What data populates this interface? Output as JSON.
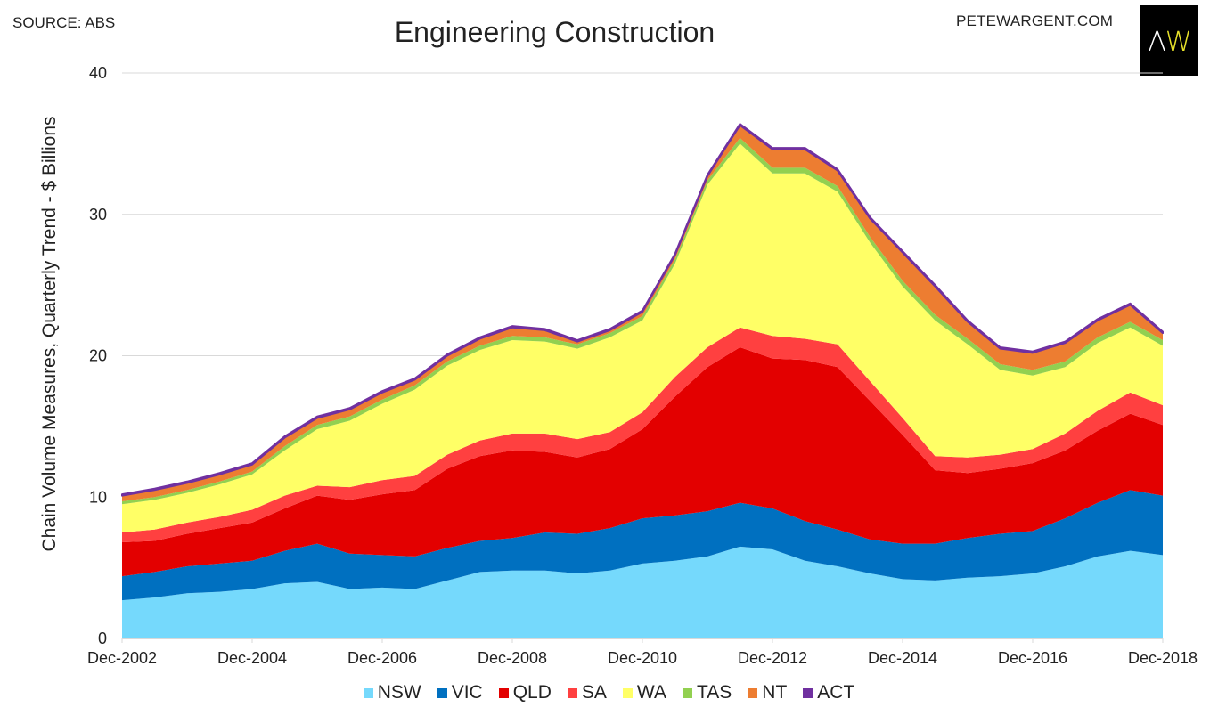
{
  "header": {
    "source": "SOURCE: ABS",
    "site": "PETEWARGENT.COM",
    "logo_left": "Λ",
    "logo_right": "W"
  },
  "chart_data": {
    "type": "area",
    "stacked": true,
    "title": "Engineering Construction",
    "xlabel": "",
    "ylabel": "Chain Volume Measures, Quarterly Trend - $ Billions",
    "ylim": [
      0,
      40
    ],
    "yticks": [
      "0",
      "10",
      "20",
      "30",
      "40"
    ],
    "xticks": [
      "Dec-2002",
      "Dec-2004",
      "Dec-2006",
      "Dec-2008",
      "Dec-2010",
      "Dec-2012",
      "Dec-2014",
      "Dec-2016",
      "Dec-2018"
    ],
    "grid": "horizontal",
    "legend": "bottom",
    "x": [
      "Dec-2002",
      "Jun-2003",
      "Dec-2003",
      "Jun-2004",
      "Dec-2004",
      "Jun-2005",
      "Dec-2005",
      "Jun-2006",
      "Dec-2006",
      "Jun-2007",
      "Dec-2007",
      "Jun-2008",
      "Dec-2008",
      "Jun-2009",
      "Dec-2009",
      "Jun-2010",
      "Dec-2010",
      "Jun-2011",
      "Dec-2011",
      "Jun-2012",
      "Dec-2012",
      "Jun-2013",
      "Dec-2013",
      "Jun-2014",
      "Dec-2014",
      "Jun-2015",
      "Dec-2015",
      "Jun-2016",
      "Dec-2016",
      "Jun-2017",
      "Dec-2017",
      "Jun-2018",
      "Dec-2018"
    ],
    "series": [
      {
        "name": "NSW",
        "color": "#75d9fc",
        "values": [
          2.7,
          2.9,
          3.2,
          3.3,
          3.5,
          3.9,
          4.0,
          3.5,
          3.6,
          3.5,
          4.1,
          4.7,
          4.8,
          4.8,
          4.6,
          4.8,
          5.3,
          5.5,
          5.8,
          6.5,
          6.3,
          5.5,
          5.1,
          4.6,
          4.2,
          4.1,
          4.3,
          4.4,
          4.6,
          5.1,
          5.8,
          6.2,
          5.9
        ]
      },
      {
        "name": "VIC",
        "color": "#0070c0",
        "values": [
          1.7,
          1.8,
          1.9,
          2.0,
          2.0,
          2.3,
          2.7,
          2.5,
          2.3,
          2.3,
          2.3,
          2.2,
          2.3,
          2.7,
          2.8,
          3.0,
          3.2,
          3.2,
          3.2,
          3.1,
          2.9,
          2.8,
          2.6,
          2.4,
          2.5,
          2.6,
          2.8,
          3.0,
          3.0,
          3.4,
          3.8,
          4.3,
          4.2
        ]
      },
      {
        "name": "QLD",
        "color": "#e30000",
        "values": [
          2.4,
          2.2,
          2.3,
          2.5,
          2.7,
          3.0,
          3.4,
          3.8,
          4.3,
          4.7,
          5.6,
          6.0,
          6.2,
          5.7,
          5.4,
          5.6,
          6.3,
          8.4,
          10.2,
          11.0,
          10.6,
          11.4,
          11.5,
          9.8,
          7.7,
          5.2,
          4.6,
          4.6,
          4.8,
          4.8,
          5.1,
          5.4,
          5.0
        ]
      },
      {
        "name": "SA",
        "color": "#ff4040",
        "values": [
          0.7,
          0.8,
          0.8,
          0.8,
          0.9,
          0.9,
          0.7,
          0.9,
          1.0,
          1.0,
          1.0,
          1.1,
          1.2,
          1.3,
          1.3,
          1.2,
          1.2,
          1.4,
          1.4,
          1.4,
          1.6,
          1.5,
          1.6,
          1.4,
          1.2,
          1.0,
          1.1,
          1.0,
          1.0,
          1.2,
          1.4,
          1.5,
          1.4
        ]
      },
      {
        "name": "WA",
        "color": "#ffff66",
        "values": [
          2.0,
          2.1,
          2.1,
          2.3,
          2.5,
          3.2,
          4.0,
          4.7,
          5.4,
          6.1,
          6.3,
          6.4,
          6.6,
          6.5,
          6.4,
          6.7,
          6.5,
          8.0,
          11.5,
          13.0,
          11.5,
          11.7,
          10.8,
          9.8,
          9.3,
          9.6,
          8.0,
          6.0,
          5.2,
          4.7,
          4.8,
          4.6,
          4.2
        ]
      },
      {
        "name": "TAS",
        "color": "#92d050",
        "values": [
          0.2,
          0.2,
          0.2,
          0.2,
          0.2,
          0.3,
          0.3,
          0.3,
          0.3,
          0.3,
          0.3,
          0.3,
          0.3,
          0.3,
          0.3,
          0.3,
          0.3,
          0.3,
          0.3,
          0.4,
          0.4,
          0.4,
          0.4,
          0.4,
          0.4,
          0.4,
          0.4,
          0.4,
          0.4,
          0.4,
          0.4,
          0.4,
          0.4
        ]
      },
      {
        "name": "NT",
        "color": "#ed7d31",
        "values": [
          0.4,
          0.5,
          0.5,
          0.5,
          0.5,
          0.6,
          0.5,
          0.5,
          0.5,
          0.4,
          0.4,
          0.5,
          0.6,
          0.5,
          0.2,
          0.2,
          0.3,
          0.3,
          0.3,
          0.9,
          1.3,
          1.3,
          1.1,
          1.3,
          2.0,
          2.0,
          1.2,
          1.1,
          1.2,
          1.3,
          1.2,
          1.2,
          0.5
        ]
      },
      {
        "name": "ACT",
        "color": "#7030a0",
        "values": [
          0.1,
          0.1,
          0.1,
          0.1,
          0.1,
          0.1,
          0.1,
          0.1,
          0.1,
          0.1,
          0.1,
          0.1,
          0.1,
          0.1,
          0.1,
          0.1,
          0.1,
          0.1,
          0.1,
          0.1,
          0.1,
          0.1,
          0.1,
          0.1,
          0.1,
          0.1,
          0.1,
          0.1,
          0.1,
          0.1,
          0.1,
          0.1,
          0.1
        ]
      }
    ]
  }
}
